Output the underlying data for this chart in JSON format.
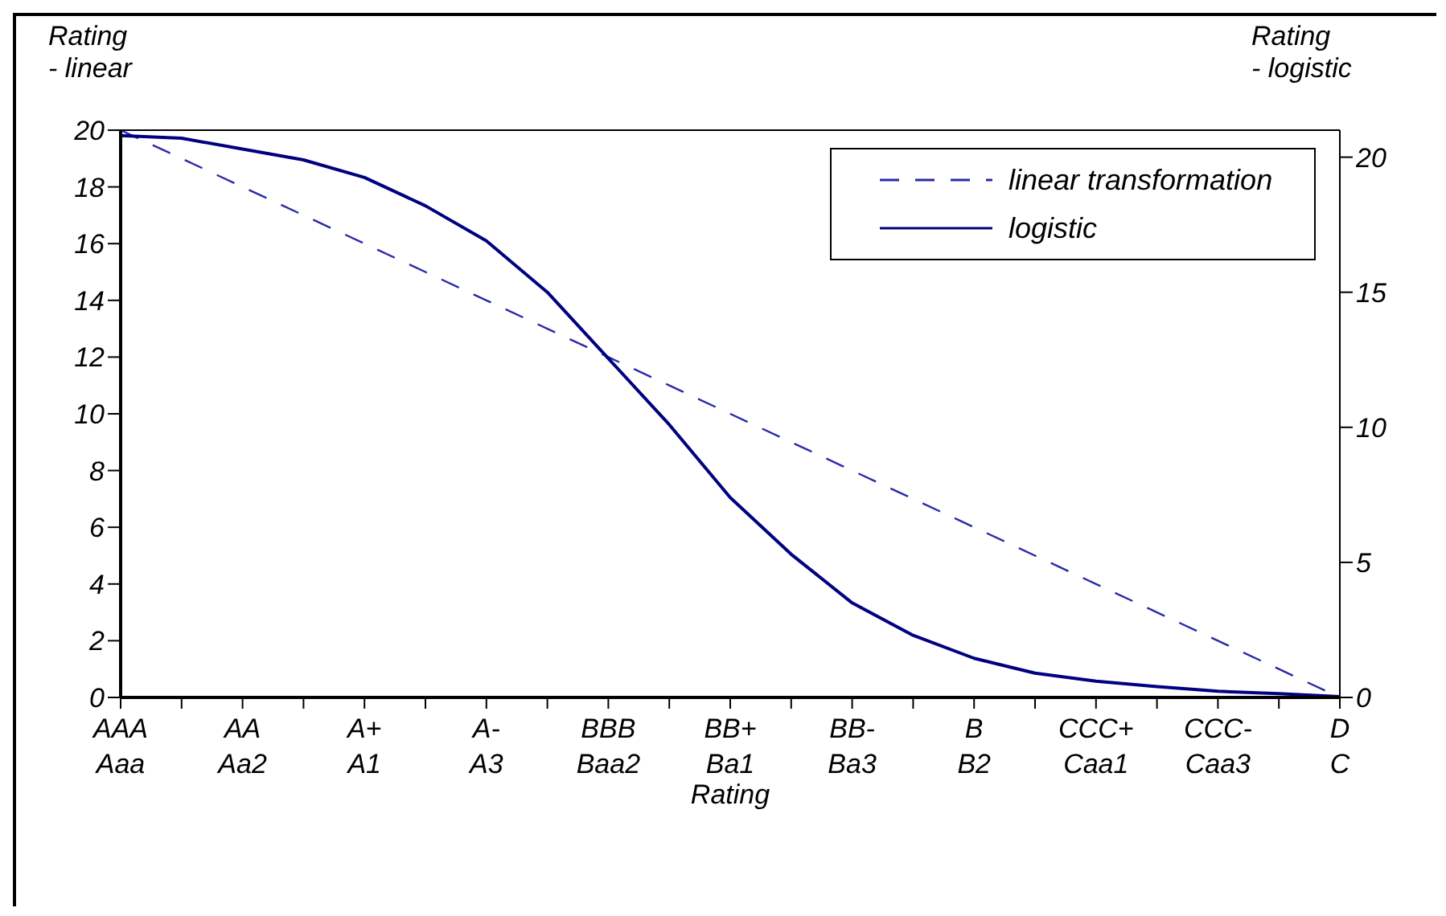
{
  "chart_data": {
    "type": "line",
    "xlabel": "Rating",
    "ylabel": "Rating\n- linear",
    "y2label": "Rating\n- logistic",
    "categories": [
      "AAA\nAaa",
      null,
      "AA\nAa2",
      null,
      "A+\nA1",
      null,
      "A-\nA3",
      null,
      "BBB\nBaa2",
      null,
      "BB+\nBa1",
      null,
      "BB-\nBa3",
      null,
      "B\nB2",
      null,
      "CCC+\nCaa1",
      null,
      "CCC-\nCaa3",
      null,
      "D\nC"
    ],
    "series": [
      {
        "name": "linear transformation",
        "color": "#2a2aa8",
        "line_style": "dashed",
        "values": [
          20,
          19,
          18,
          17,
          16,
          15,
          14,
          13,
          12,
          11,
          10,
          9,
          8,
          7,
          6,
          5,
          4,
          3,
          2,
          1,
          0
        ]
      },
      {
        "name": "logistic",
        "color": "#000080",
        "line_style": "solid",
        "axis": "y2",
        "values": [
          20.8,
          20.7,
          20.3,
          19.9,
          19.25,
          18.2,
          16.9,
          15.0,
          12.55,
          10.1,
          7.4,
          5.3,
          3.5,
          2.3,
          1.45,
          0.9,
          0.6,
          0.4,
          0.23,
          0.14,
          0.03
        ]
      }
    ],
    "ylim": [
      0,
      20
    ],
    "yticks": [
      0,
      2,
      4,
      6,
      8,
      10,
      12,
      14,
      16,
      18,
      20
    ],
    "y2lim": [
      0,
      21
    ],
    "y2ticks": [
      0,
      5,
      10,
      15,
      20
    ],
    "grid": false,
    "legend": "top right",
    "marker": "none"
  }
}
